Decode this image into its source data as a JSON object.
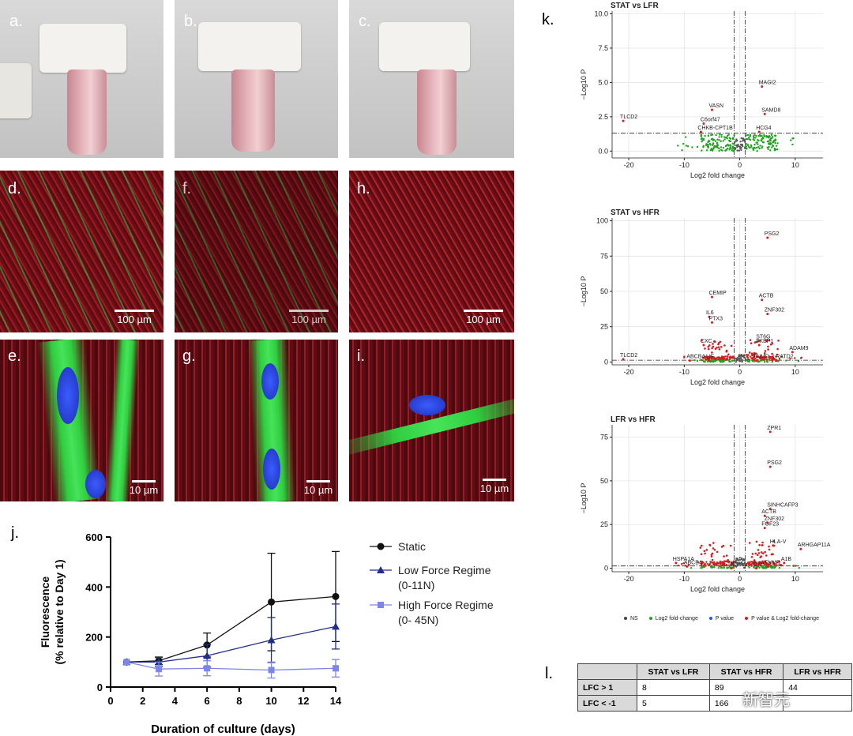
{
  "panels": {
    "a": "a.",
    "b": "b.",
    "c": "c.",
    "d": "d.",
    "e": "e.",
    "f": "f.",
    "g": "g.",
    "h": "h.",
    "i": "i.",
    "j": "j.",
    "k": "k.",
    "l": "l."
  },
  "scalebars": {
    "wide": "100 µm",
    "close": "10 µm"
  },
  "chart_data": [
    {
      "type": "line",
      "panel": "j",
      "xlabel": "Duration of culture  (days)",
      "ylabel_line1": "Fluorescence",
      "ylabel_line2": "(% relative to Day  1)",
      "xlim": [
        0,
        14
      ],
      "ylim": [
        0,
        600
      ],
      "xticks": [
        0,
        2,
        4,
        6,
        8,
        10,
        12,
        14
      ],
      "yticks": [
        0,
        200,
        400,
        600
      ],
      "legend_placement": "right",
      "series": [
        {
          "name": "Static",
          "name_line2": "",
          "color": "#111111",
          "marker": "circle",
          "x": [
            1,
            3,
            6,
            10,
            14
          ],
          "y": [
            100,
            105,
            168,
            340,
            362
          ],
          "err": [
            0,
            15,
            48,
            195,
            180
          ]
        },
        {
          "name": "Low Force Regime",
          "name_line2": "(0-11N)",
          "color": "#1f2d8c",
          "marker": "triangle",
          "x": [
            1,
            3,
            6,
            10,
            14
          ],
          "y": [
            100,
            100,
            125,
            188,
            242
          ],
          "err": [
            0,
            18,
            45,
            90,
            90
          ]
        },
        {
          "name": "High Force Regime",
          "name_line2": "(0- 45N)",
          "color": "#7b86e8",
          "marker": "square",
          "x": [
            1,
            3,
            6,
            10,
            14
          ],
          "y": [
            100,
            72,
            75,
            68,
            75
          ],
          "err": [
            0,
            28,
            30,
            32,
            35
          ]
        }
      ]
    },
    {
      "type": "scatter",
      "panel": "k-top",
      "title": "STAT vs LFR",
      "xlabel": "Log2 fold change",
      "ylabel": "−Log10 P",
      "xlim": [
        -23,
        15
      ],
      "ylim": [
        -0.5,
        10.2
      ],
      "xticks": [
        -20,
        -10,
        0,
        10
      ],
      "yticks": [
        0.0,
        2.5,
        5.0,
        7.5,
        10.0
      ],
      "ytick_labels": [
        "0.0",
        "2.5",
        "5.0",
        "7.5",
        "10.0"
      ],
      "labels": [
        {
          "text": "MAGI2",
          "x": 4.0,
          "y": 4.7
        },
        {
          "text": "VASN",
          "x": -5.0,
          "y": 3.0
        },
        {
          "text": "SAMD8",
          "x": 4.5,
          "y": 2.7
        },
        {
          "text": "TLCD2",
          "x": -21.0,
          "y": 2.2
        },
        {
          "text": "C6orf47",
          "x": -6.5,
          "y": 2.0
        },
        {
          "text": "CHKB-CPT1B",
          "x": -7.0,
          "y": 1.4
        },
        {
          "text": "HCG4",
          "x": 3.5,
          "y": 1.4
        }
      ]
    },
    {
      "type": "scatter",
      "panel": "k-middle",
      "title": "STAT vs HFR",
      "xlabel": "Log2 fold change",
      "ylabel": "−Log10 P",
      "xlim": [
        -23,
        15
      ],
      "ylim": [
        -2,
        102
      ],
      "xticks": [
        -20,
        -10,
        0,
        10
      ],
      "yticks": [
        0,
        25,
        50,
        75,
        100
      ],
      "labels": [
        {
          "text": "PSG2",
          "x": 5.0,
          "y": 88
        },
        {
          "text": "CEMIP",
          "x": -5.0,
          "y": 46
        },
        {
          "text": "ACTB",
          "x": 4.0,
          "y": 44
        },
        {
          "text": "ZNF302",
          "x": 5.0,
          "y": 34
        },
        {
          "text": "IL6",
          "x": -5.5,
          "y": 32
        },
        {
          "text": "PTX3",
          "x": -5.0,
          "y": 28
        },
        {
          "text": "CXC",
          "x": -6.5,
          "y": 12
        },
        {
          "text": "ST6G",
          "x": 3.5,
          "y": 15
        },
        {
          "text": "FKBP1",
          "x": 3.5,
          "y": 12
        },
        {
          "text": "ADAM9",
          "x": 9.5,
          "y": 7
        },
        {
          "text": "TLCD2",
          "x": -21.0,
          "y": 2
        },
        {
          "text": "ABCB4",
          "x": -9.0,
          "y": 1
        },
        {
          "text": "LIF",
          "x": -5.5,
          "y": 1
        },
        {
          "text": "TNMD",
          "x": 3.0,
          "y": 1
        },
        {
          "text": "LRATD2",
          "x": 6.5,
          "y": 1
        }
      ]
    },
    {
      "type": "scatter",
      "panel": "k-bottom",
      "title": "LFR vs HFR",
      "xlabel": "Log2 fold change",
      "ylabel": "−Log10 P",
      "xlim": [
        -23,
        15
      ],
      "ylim": [
        -2,
        82
      ],
      "xticks": [
        -20,
        -10,
        0,
        10
      ],
      "yticks": [
        0,
        25,
        50,
        75
      ],
      "labels": [
        {
          "text": "ZPR1",
          "x": 5.5,
          "y": 78
        },
        {
          "text": "PSG2",
          "x": 5.5,
          "y": 58
        },
        {
          "text": "SINHCAFP3",
          "x": 5.5,
          "y": 34
        },
        {
          "text": "ACTB",
          "x": 4.5,
          "y": 30
        },
        {
          "text": "ZNF302",
          "x": 5.0,
          "y": 26
        },
        {
          "text": "FGF23",
          "x": 4.5,
          "y": 23
        },
        {
          "text": "HLA-V",
          "x": 6.0,
          "y": 13
        },
        {
          "text": "ARHGAP11A",
          "x": 11.0,
          "y": 11
        },
        {
          "text": "HSPA1A",
          "x": -11.5,
          "y": 3
        },
        {
          "text": "ABCB4",
          "x": -9.5,
          "y": 1
        },
        {
          "text": "DCN",
          "x": -1.5,
          "y": 0
        },
        {
          "text": "CTH",
          "x": 3.0,
          "y": 0
        },
        {
          "text": "TNMD",
          "x": 5.0,
          "y": 1
        },
        {
          "text": "A1B",
          "x": 8.0,
          "y": 3
        }
      ]
    }
  ],
  "volcano_legend": [
    {
      "label": "NS",
      "color": "#444444"
    },
    {
      "label": "Log2 fold-change",
      "color": "#1fa31f"
    },
    {
      "label": "P value",
      "color": "#1f5fd6"
    },
    {
      "label": "P value & Log2 fold-change",
      "color": "#d21f1f"
    }
  ],
  "table": {
    "headers": [
      "",
      "STAT vs LFR",
      "STAT vs HFR",
      "LFR vs HFR"
    ],
    "rows": [
      {
        "label": "LFC > 1",
        "values": [
          "8",
          "89",
          "44"
        ]
      },
      {
        "label": "LFC < -1",
        "values": [
          "5",
          "166",
          ""
        ]
      }
    ]
  },
  "watermark": "新智元"
}
